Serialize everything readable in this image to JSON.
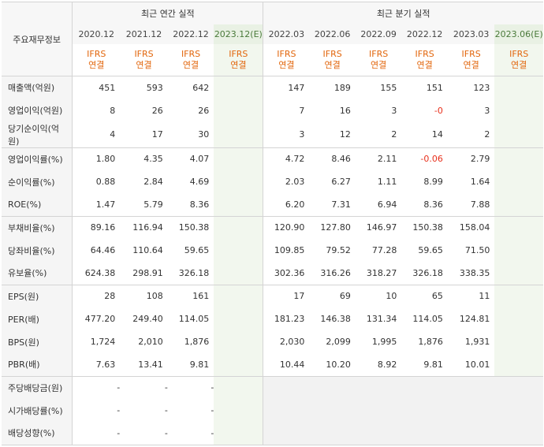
{
  "label_header": "주요재무정보",
  "groups": {
    "annual": "최근 연간 실적",
    "quarter": "최근 분기 실적"
  },
  "periods": [
    "2020.12",
    "2021.12",
    "2022.12",
    "2023.12(E)",
    "2022.03",
    "2022.06",
    "2022.09",
    "2022.12",
    "2023.03",
    "2023.06(E)"
  ],
  "ifrs_top": "IFRS",
  "ifrs_bottom": "연결",
  "rows": [
    {
      "label": "매출액(억원)",
      "values": [
        "451",
        "593",
        "642",
        "",
        "147",
        "189",
        "155",
        "151",
        "123",
        ""
      ]
    },
    {
      "label": "영업이익(억원)",
      "values": [
        "8",
        "26",
        "26",
        "",
        "7",
        "16",
        "3",
        "-0",
        "3",
        ""
      ]
    },
    {
      "label": "당기순이익(억원)",
      "values": [
        "4",
        "17",
        "30",
        "",
        "3",
        "12",
        "2",
        "14",
        "2",
        ""
      ]
    },
    {
      "label": "영업이익률(%)",
      "values": [
        "1.80",
        "4.35",
        "4.07",
        "",
        "4.72",
        "8.46",
        "2.11",
        "-0.06",
        "2.79",
        ""
      ]
    },
    {
      "label": "순이익률(%)",
      "values": [
        "0.88",
        "2.84",
        "4.69",
        "",
        "2.03",
        "6.27",
        "1.11",
        "8.99",
        "1.64",
        ""
      ]
    },
    {
      "label": "ROE(%)",
      "values": [
        "1.47",
        "5.79",
        "8.36",
        "",
        "6.20",
        "7.31",
        "6.94",
        "8.36",
        "7.88",
        ""
      ]
    },
    {
      "label": "부채비율(%)",
      "values": [
        "89.16",
        "116.94",
        "150.38",
        "",
        "120.90",
        "127.80",
        "146.97",
        "150.38",
        "158.04",
        ""
      ]
    },
    {
      "label": "당좌비율(%)",
      "values": [
        "64.46",
        "110.64",
        "59.65",
        "",
        "109.85",
        "79.52",
        "77.28",
        "59.65",
        "71.50",
        ""
      ]
    },
    {
      "label": "유보율(%)",
      "values": [
        "624.38",
        "298.91",
        "326.18",
        "",
        "302.36",
        "316.26",
        "318.27",
        "326.18",
        "338.35",
        ""
      ]
    },
    {
      "label": "EPS(원)",
      "values": [
        "28",
        "108",
        "161",
        "",
        "17",
        "69",
        "10",
        "65",
        "11",
        ""
      ]
    },
    {
      "label": "PER(배)",
      "values": [
        "477.20",
        "249.40",
        "114.05",
        "",
        "181.23",
        "146.38",
        "131.34",
        "114.05",
        "124.81",
        ""
      ]
    },
    {
      "label": "BPS(원)",
      "values": [
        "1,724",
        "2,010",
        "1,876",
        "",
        "2,030",
        "2,099",
        "1,995",
        "1,876",
        "1,931",
        ""
      ]
    },
    {
      "label": "PBR(배)",
      "values": [
        "7.63",
        "13.41",
        "9.81",
        "",
        "10.44",
        "10.20",
        "8.92",
        "9.81",
        "10.01",
        ""
      ]
    },
    {
      "label": "주당배당금(원)",
      "values": [
        "-",
        "-",
        "-",
        "",
        "",
        "",
        "",
        "",
        "",
        ""
      ]
    },
    {
      "label": "시가배당률(%)",
      "values": [
        "-",
        "-",
        "-",
        "",
        "",
        "",
        "",
        "",
        "",
        ""
      ]
    },
    {
      "label": "배당성향(%)",
      "values": [
        "-",
        "-",
        "-",
        "",
        "",
        "",
        "",
        "",
        "",
        ""
      ]
    }
  ],
  "colors": {
    "ifrs": "#e2660c",
    "negative": "#e8301c",
    "estimate_bg": "#f2f7ee"
  }
}
